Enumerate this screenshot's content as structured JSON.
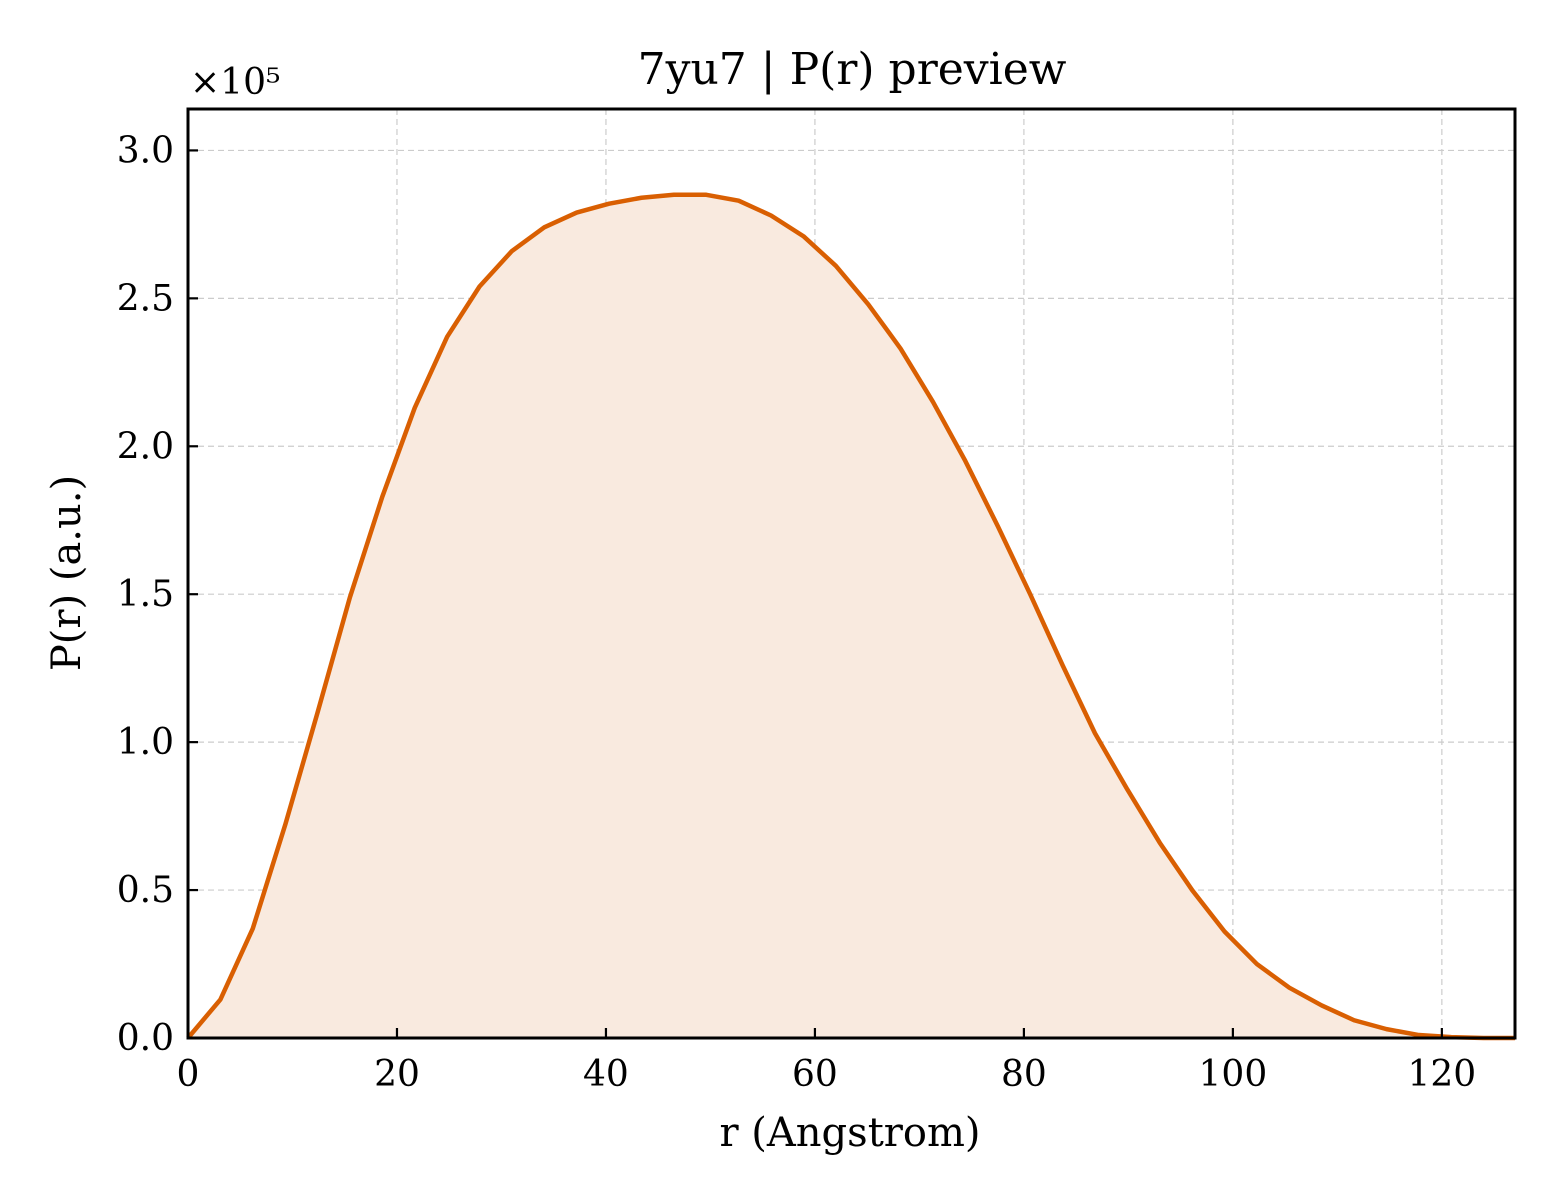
{
  "chart_data": {
    "type": "area",
    "title": "7yu7 | P(r) preview",
    "xlabel": "r (Angstrom)",
    "ylabel": "P(r) (a.u.)",
    "y_offset_label": "×10⁵",
    "xlim": [
      0,
      127
    ],
    "ylim": [
      0,
      3.14
    ],
    "y_scale_note": "y values in units of 1e5",
    "x_ticks": [
      0,
      20,
      40,
      60,
      80,
      100,
      120
    ],
    "x_tick_labels": [
      "0",
      "20",
      "40",
      "60",
      "80",
      "100",
      "120"
    ],
    "y_ticks": [
      0,
      0.5,
      1.0,
      1.5,
      2.0,
      2.5,
      3.0
    ],
    "y_tick_labels": [
      "0.0",
      "0.5",
      "1.0",
      "1.5",
      "2.0",
      "2.5",
      "3.0"
    ],
    "grid": true,
    "colors": {
      "line": "#d95f02",
      "fill": "#f9eadf"
    },
    "series": [
      {
        "x": [
          0,
          3.1,
          6.2,
          9.3,
          12.4,
          15.5,
          18.6,
          21.7,
          24.8,
          27.9,
          31.0,
          34.1,
          37.2,
          40.3,
          43.4,
          46.5,
          49.6,
          52.7,
          55.8,
          58.9,
          62.0,
          65.1,
          68.2,
          71.3,
          74.4,
          77.5,
          80.6,
          83.7,
          86.8,
          89.9,
          93.0,
          96.1,
          99.2,
          102.3,
          105.4,
          108.5,
          111.6,
          114.7,
          117.8,
          120.9,
          124.0,
          127.0
        ],
        "values": [
          0.0,
          0.13,
          0.37,
          0.72,
          1.1,
          1.49,
          1.83,
          2.13,
          2.37,
          2.54,
          2.66,
          2.74,
          2.79,
          2.82,
          2.84,
          2.85,
          2.85,
          2.83,
          2.78,
          2.71,
          2.61,
          2.48,
          2.33,
          2.15,
          1.95,
          1.73,
          1.5,
          1.26,
          1.03,
          0.84,
          0.66,
          0.5,
          0.36,
          0.25,
          0.17,
          0.11,
          0.06,
          0.03,
          0.01,
          0.003,
          0.0,
          0.0
        ]
      }
    ]
  }
}
